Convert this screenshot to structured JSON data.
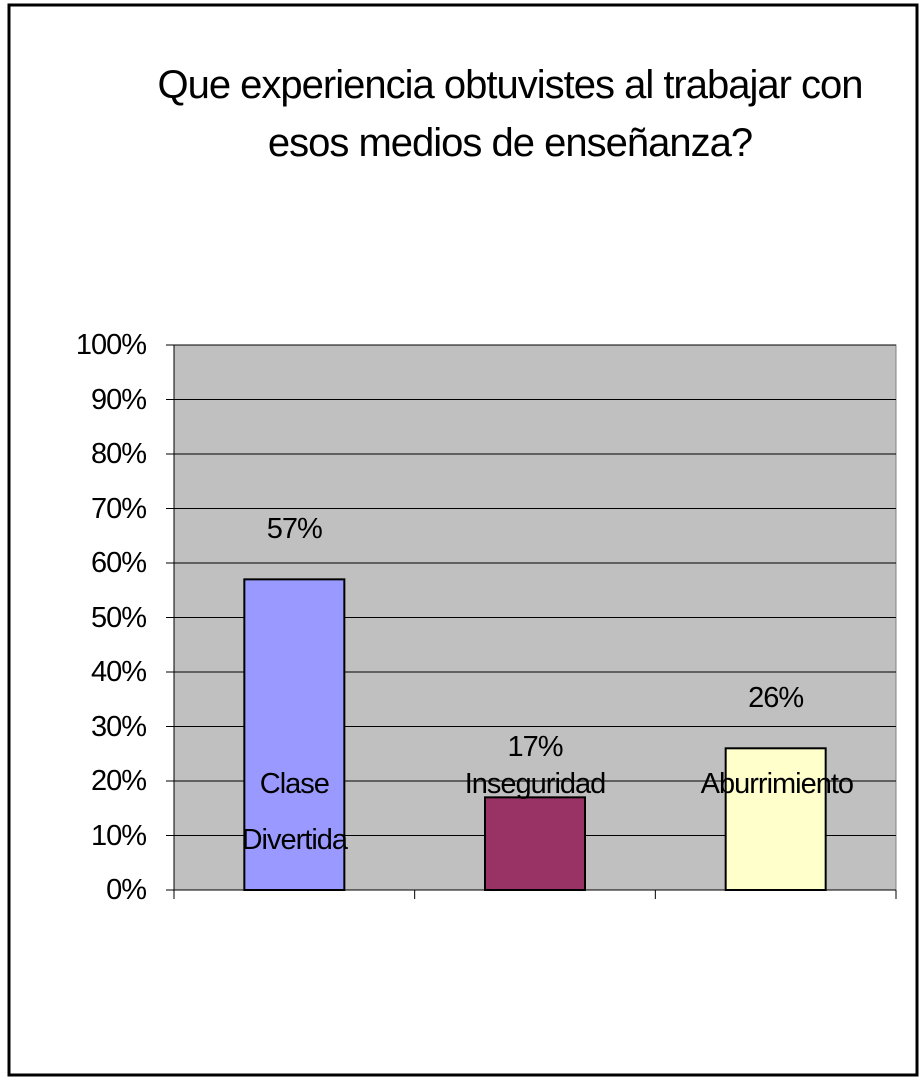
{
  "chart_data": {
    "type": "bar",
    "title": "Que experiencia obtuvistes al trabajar con esos medios de enseñanza?",
    "categories": [
      "Clase Divertida",
      "Inseguridad",
      "Aburrimiento"
    ],
    "values": [
      57,
      17,
      26
    ],
    "value_labels": [
      "57%",
      "17%",
      "26%"
    ],
    "colors": [
      "#9999ff",
      "#993366",
      "#ffffcc"
    ],
    "ylim": [
      0,
      100
    ],
    "yticks": [
      {
        "value": 0,
        "label": "0%"
      },
      {
        "value": 10,
        "label": "10%"
      },
      {
        "value": 20,
        "label": "20%"
      },
      {
        "value": 30,
        "label": "30%"
      },
      {
        "value": 40,
        "label": "40%"
      },
      {
        "value": 50,
        "label": "50%"
      },
      {
        "value": 60,
        "label": "60%"
      },
      {
        "value": 70,
        "label": "70%"
      },
      {
        "value": 80,
        "label": "80%"
      },
      {
        "value": 90,
        "label": "90%"
      },
      {
        "value": 100,
        "label": "100%"
      }
    ],
    "grid": true,
    "plot_background": "#c0c0c0"
  }
}
